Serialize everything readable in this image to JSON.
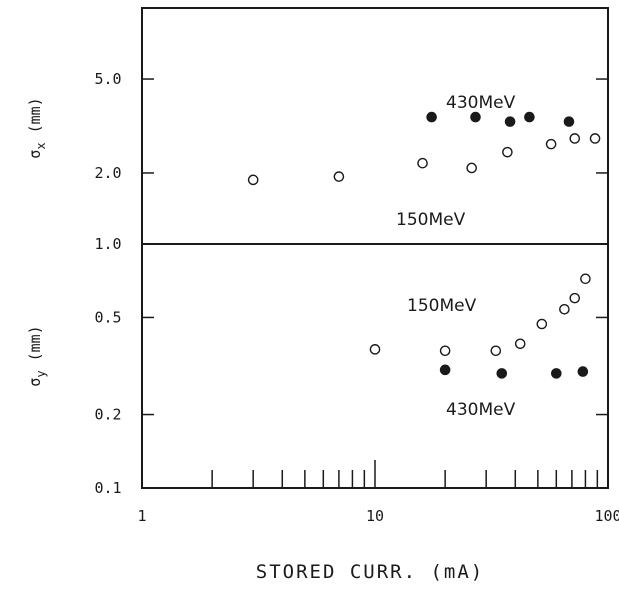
{
  "chart_data": [
    {
      "type": "scatter",
      "panel": "top",
      "ylabel_symbol": "σ",
      "ylabel_sub": "x",
      "ylabel_unit": "(mm)",
      "yscale": "log",
      "ylim": [
        1.0,
        10.0
      ],
      "yticks": [
        {
          "value": 5.0,
          "label": "5.0"
        },
        {
          "value": 2.0,
          "label": "2.0"
        },
        {
          "value": 1.0,
          "label": "1.0"
        }
      ],
      "series": [
        {
          "label_text": "430MeV",
          "marker": "filled",
          "x": [
            17.5,
            27,
            38,
            46,
            68
          ],
          "y": [
            3.45,
            3.45,
            3.3,
            3.45,
            3.3
          ]
        },
        {
          "label_text": "150MeV",
          "marker": "open",
          "x": [
            3,
            7,
            16,
            26,
            37,
            57,
            72,
            88
          ],
          "y": [
            1.87,
            1.93,
            2.2,
            2.1,
            2.45,
            2.65,
            2.8,
            2.8
          ]
        }
      ]
    },
    {
      "type": "scatter",
      "panel": "bottom",
      "ylabel_symbol": "σ",
      "ylabel_sub": "y",
      "ylabel_unit": "(mm)",
      "yscale": "log",
      "ylim": [
        0.1,
        1.0
      ],
      "yticks": [
        {
          "value": 0.5,
          "label": "0.5"
        },
        {
          "value": 0.2,
          "label": "0.2"
        },
        {
          "value": 0.1,
          "label": "0.1"
        }
      ],
      "series": [
        {
          "label_text": "150MeV",
          "marker": "open",
          "x": [
            10,
            20,
            33,
            42,
            52,
            65,
            72,
            80
          ],
          "y": [
            0.37,
            0.365,
            0.365,
            0.39,
            0.47,
            0.54,
            0.6,
            0.72
          ]
        },
        {
          "label_text": "430MeV",
          "marker": "filled",
          "x": [
            20,
            35,
            60,
            78
          ],
          "y": [
            0.305,
            0.295,
            0.295,
            0.3
          ]
        }
      ]
    }
  ],
  "x_axis": {
    "label": "STORED CURR. (mA)",
    "scale": "log",
    "xlim": [
      1,
      100
    ],
    "ticks": [
      {
        "value": 1,
        "label": "1"
      },
      {
        "value": 10,
        "label": "10"
      },
      {
        "value": 100,
        "label": "100"
      }
    ]
  }
}
